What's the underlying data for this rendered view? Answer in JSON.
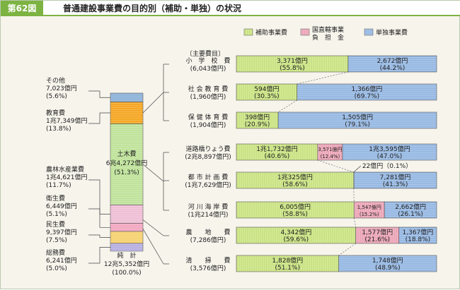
{
  "figure_label": "第62図",
  "title": "普通建設事業費の目的別（補助・単独）の状況",
  "chart_data": {
    "type": "bar",
    "stacked_total": {
      "note_label": "純　計",
      "total_value": "12兆5,352億円",
      "total_pct": "(100.0%)",
      "segments": [
        {
          "name": "その他",
          "value": "7,023億円",
          "pct": "(5.6%)",
          "share": 5.6,
          "color": "#8fb3d9"
        },
        {
          "name": "教育費",
          "value": "1兆7,349億円",
          "pct": "(13.8%)",
          "share": 13.8,
          "color": "#f5a623"
        },
        {
          "name": "土木費",
          "value": "6兆4,272億円",
          "pct": "(51.3%)",
          "share": 51.3,
          "color": "#bfe39a"
        },
        {
          "name": "農林水産業費",
          "value": "1兆4,621億円",
          "pct": "(11.7%)",
          "share": 11.7,
          "color": "#efbfd6"
        },
        {
          "name": "衛生費",
          "value": "6,449億円",
          "pct": "(5.1%)",
          "share": 5.1,
          "color": "#f2a7c0"
        },
        {
          "name": "民生費",
          "value": "9,397億円",
          "pct": "(7.5%)",
          "share": 7.5,
          "color": "#f5d372"
        },
        {
          "name": "総務費",
          "value": "6,241億円",
          "pct": "(5.0%)",
          "share": 5.0,
          "color": "#b6aee0"
        }
      ]
    },
    "legend": [
      {
        "label": "補助事業費",
        "color": "#d6eb98"
      },
      {
        "label": "国直轄事業\n負　担　金",
        "color": "#f2b8c6"
      },
      {
        "label": "単独事業費",
        "color": "#a9c6ea"
      }
    ],
    "section_label": "〔主要費目〕",
    "series": [
      {
        "name": "補助事業費",
        "color": "#d6eb98"
      },
      {
        "name": "国直轄事業負担金",
        "color": "#f2b8c6"
      },
      {
        "name": "単独事業費",
        "color": "#a9c6ea"
      }
    ],
    "categories": [
      {
        "name": "小　学　校　費",
        "total": "(6,043億円)",
        "values": [
          55.8,
          0,
          44.2
        ],
        "labels": [
          [
            "3,371億円",
            "(55.8%)"
          ],
          null,
          [
            "2,672億円",
            "(44.2%)"
          ]
        ]
      },
      {
        "name": "社 会 教 育 費",
        "total": "(1,960億円)",
        "values": [
          30.3,
          0,
          69.7
        ],
        "labels": [
          [
            "594億円",
            "(30.3%)"
          ],
          null,
          [
            "1,366億円",
            "(69.7%)"
          ]
        ]
      },
      {
        "name": "保 健 体 育 費",
        "total": "(1,904億円)",
        "values": [
          20.9,
          0,
          79.1
        ],
        "labels": [
          [
            "398億円",
            "(20.9%)"
          ],
          null,
          [
            "1,505億円",
            "(79.1%)"
          ]
        ]
      },
      {
        "name": "道路橋りょう費",
        "total": "(2兆8,897億円)",
        "values": [
          40.6,
          12.4,
          47.0
        ],
        "labels": [
          [
            "1兆1,732億円",
            "(40.6%)"
          ],
          [
            "3,571億円",
            "(12.4%)"
          ],
          [
            "1兆3,595億円",
            "(47.0%)"
          ]
        ]
      },
      {
        "name": "都 市 計 画 費",
        "total": "(1兆7,629億円)",
        "values": [
          58.6,
          0.1,
          41.3
        ],
        "labels": [
          [
            "1兆325億円",
            "(58.6%)"
          ],
          null,
          [
            "7,281億円",
            "(41.3%)"
          ]
        ],
        "callout": "22億円（0.1%）"
      },
      {
        "name": "河 川 海 岸 費",
        "total": "(1兆214億円)",
        "values": [
          58.8,
          15.2,
          26.1
        ],
        "labels": [
          [
            "6,005億円",
            "(58.8%)"
          ],
          [
            "1,547億円",
            "(15.2%)"
          ],
          [
            "2,662億円",
            "(26.1%)"
          ]
        ]
      },
      {
        "name": "農　　地　　費",
        "total": "(7,286億円)",
        "values": [
          59.6,
          21.6,
          18.8
        ],
        "labels": [
          [
            "4,342億円",
            "(59.6%)"
          ],
          [
            "1,577億円",
            "(21.6%)"
          ],
          [
            "1,367億円",
            "(18.8%)"
          ]
        ]
      },
      {
        "name": "清　　掃　　費",
        "total": "(3,576億円)",
        "values": [
          51.1,
          0,
          48.9
        ],
        "labels": [
          [
            "1,828億円",
            "(51.1%)"
          ],
          null,
          [
            "1,748億円",
            "(48.9%)"
          ]
        ]
      }
    ]
  }
}
